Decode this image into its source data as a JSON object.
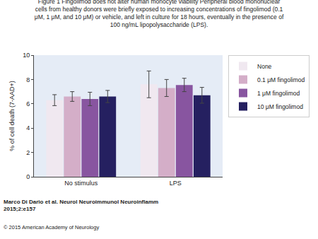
{
  "chart_data": {
    "type": "bar",
    "title": "Figure 1 Fingolimod does not alter human monocyte viability Peripheral blood mononuclear\ncells from healthy donors were briefly exposed to increasing concentrations of fingolimod (0.1\nμM, 1 μM, and 10 μM) or vehicle, and left in culture for 18 hours, eventually in the presence of\n100 ng/mL lipopolysaccharide (LPS).",
    "ylabel": "% of cell death (7-AAD+)",
    "categories": [
      "No stimulus",
      "LPS"
    ],
    "series": [
      {
        "name": "None",
        "color": "#f0e8f0",
        "values": [
          6.3,
          7.6
        ],
        "errors": [
          0.45,
          1.1
        ]
      },
      {
        "name": "0.1 μM fingolimod",
        "color": "#d4aec8",
        "values": [
          6.6,
          7.3
        ],
        "errors": [
          0.4,
          0.7
        ]
      },
      {
        "name": "1 μM fingolimod",
        "color": "#8855a0",
        "values": [
          6.4,
          7.55
        ],
        "errors": [
          0.55,
          0.55
        ]
      },
      {
        "name": "10 μM fingolimod",
        "color": "#252060",
        "values": [
          6.6,
          6.7
        ],
        "errors": [
          0.5,
          0.65
        ]
      }
    ],
    "ylim": [
      0,
      10
    ],
    "yticks": [
      0,
      2,
      4,
      6,
      8,
      10
    ],
    "grid": false,
    "legend": "right",
    "annotations": [
      "Marco Di Dario et al. Neurol Neuroimmunol Neuroinflamm\n2015;2:e157",
      "© 2015 American Academy of Neurology"
    ]
  }
}
